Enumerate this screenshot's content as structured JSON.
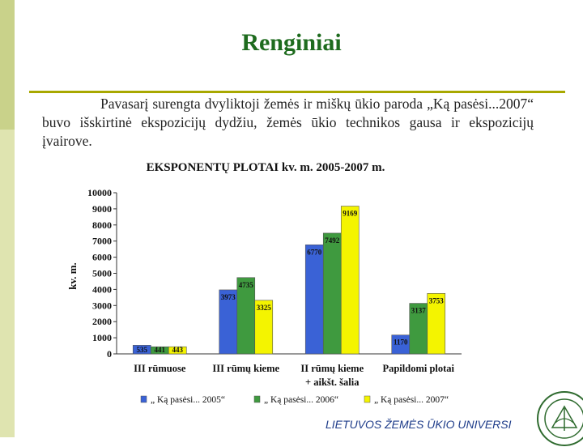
{
  "slide": {
    "title": "Renginiai",
    "paragraph": "Pavasarį surengta dvyliktoji žemės ir miškų ūkio paroda „Ką pasėsi...2007“ buvo išskirtinė ekspozicijų dydžiu, žemės ūkio technikos gausa ir ekspozicijų įvairove.",
    "footer": "LIETUVOS ŽEMĖS ŪKIO UNIVERSI"
  },
  "colors": {
    "title": "#1e6b1e",
    "rule": "#a8a800",
    "series": [
      "#3a62d6",
      "#3f9a3f",
      "#f4f400"
    ]
  },
  "chart_data": {
    "type": "bar",
    "title": "EKSPONENTŲ PLOTAI kv. m. 2005-2007 m.",
    "ylabel": "kv. m.",
    "xlabel": "",
    "ylim": [
      0,
      10000
    ],
    "yticks": [
      0,
      1000,
      2000,
      3000,
      4000,
      5000,
      6000,
      7000,
      8000,
      9000,
      10000
    ],
    "categories": [
      [
        "III rūmuose"
      ],
      [
        "III rūmų kieme"
      ],
      [
        "II rūmų kieme",
        "+ aikšt. šalia"
      ],
      [
        "Papildomi plotai"
      ]
    ],
    "series": [
      {
        "name": "„ Ką pasėsi... 2005“",
        "values": [
          535,
          3973,
          6770,
          1170
        ]
      },
      {
        "name": "„ Ką pasėsi... 2006“",
        "values": [
          441,
          4735,
          7492,
          3137
        ]
      },
      {
        "name": "„ Ką pasėsi... 2007“",
        "values": [
          443,
          3325,
          9169,
          3753
        ]
      }
    ],
    "legend": "bottom",
    "grid": false
  }
}
